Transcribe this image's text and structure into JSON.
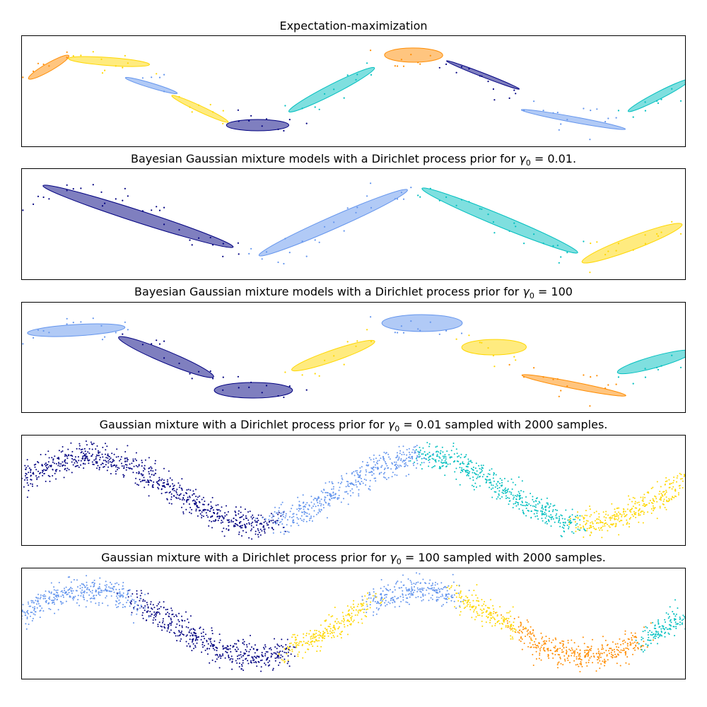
{
  "colors": {
    "navy": "#000080",
    "cornflowerblue": "#6495ED",
    "gold": "#FFD700",
    "darkorange": "#FF8C00",
    "c": "#00BFBF"
  },
  "chart_data": [
    {
      "type": "scatter",
      "title": {
        "prefix": "Expectation-maximization",
        "symbol": "",
        "sub": "",
        "value": "",
        "suffix": ""
      },
      "xlim": [
        -6,
        6.566
      ],
      "ylim": [
        -5,
        5
      ],
      "ticks": false,
      "grid": false,
      "ellipse_alpha": 0.5,
      "ellipses": [
        {
          "color": "darkorange",
          "center": [
            -5.48,
            2.13
          ],
          "semi_axes": [
            1.14,
            0.14
          ],
          "angle_deg": 71.6
        },
        {
          "color": "gold",
          "center": [
            -4.34,
            2.64
          ],
          "semi_axes": [
            0.82,
            0.34
          ],
          "angle_deg": -23
        },
        {
          "color": "cornflowerblue",
          "center": [
            -3.54,
            0.48
          ],
          "semi_axes": [
            0.87,
            0.13
          ],
          "angle_deg": -56.7
        },
        {
          "color": "gold",
          "center": [
            -2.62,
            -1.62
          ],
          "semi_axes": [
            1.32,
            0.12
          ],
          "angle_deg": -66.7
        },
        {
          "color": "navy",
          "center": [
            -1.53,
            -3.09
          ],
          "semi_axes": [
            0.59,
            0.51
          ],
          "angle_deg": 0
        },
        {
          "color": "c",
          "center": [
            -0.13,
            0.1
          ],
          "semi_axes": [
            2.16,
            0.19
          ],
          "angle_deg": 68.5
        },
        {
          "color": "darkorange",
          "center": [
            1.42,
            3.22
          ],
          "semi_axes": [
            0.55,
            0.64
          ],
          "angle_deg": 3
        },
        {
          "color": "navy",
          "center": [
            2.73,
            1.43
          ],
          "semi_axes": [
            1.45,
            0.09
          ],
          "angle_deg": -61.9
        },
        {
          "color": "cornflowerblue",
          "center": [
            4.44,
            -2.58
          ],
          "semi_axes": [
            1.32,
            0.19
          ],
          "angle_deg": -42.4
        },
        {
          "color": "c",
          "center": [
            6.06,
            -0.41
          ],
          "semi_axes": [
            1.57,
            0.14
          ],
          "angle_deg": 68.7
        }
      ]
    },
    {
      "type": "scatter",
      "title": {
        "prefix": "Bayesian Gaussian mixture models with a Dirichlet process prior for ",
        "symbol": "γ",
        "sub": "0",
        "value": " = 0.01",
        "suffix": "."
      },
      "xlim": [
        -6,
        6.566
      ],
      "ylim": [
        -5,
        5
      ],
      "ticks": false,
      "grid": false,
      "ellipse_alpha": 0.5,
      "ellipses": [
        {
          "color": "navy",
          "center": [
            -3.79,
            0.67
          ],
          "semi_axes": [
            3.32,
            0.31
          ],
          "angle_deg": -57.6
        },
        {
          "color": "cornflowerblue",
          "center": [
            -0.1,
            0.1
          ],
          "semi_axes": [
            3.3,
            0.26
          ],
          "angle_deg": 65.2
        },
        {
          "color": "c",
          "center": [
            3.05,
            0.29
          ],
          "semi_axes": [
            3.27,
            0.26
          ],
          "angle_deg": -63.6
        },
        {
          "color": "gold",
          "center": [
            5.55,
            -1.75
          ],
          "semi_axes": [
            2.0,
            0.3
          ],
          "angle_deg": 63
        }
      ]
    },
    {
      "type": "scatter",
      "title": {
        "prefix": "Bayesian Gaussian mixture models with a Dirichlet process prior for ",
        "symbol": "γ",
        "sub": "0",
        "value": " = 100",
        "suffix": ""
      },
      "xlim": [
        -6,
        6.566
      ],
      "ylim": [
        -5,
        5
      ],
      "ticks": false,
      "grid": false,
      "ellipse_alpha": 0.5,
      "ellipses": [
        {
          "color": "cornflowerblue",
          "center": [
            -4.96,
            2.45
          ],
          "semi_axes": [
            0.97,
            0.49
          ],
          "angle_deg": 21
        },
        {
          "color": "navy",
          "center": [
            -3.26,
            0.03
          ],
          "semi_axes": [
            2.04,
            0.26
          ],
          "angle_deg": -64.8
        },
        {
          "color": "navy",
          "center": [
            -1.61,
            -2.96
          ],
          "semi_axes": [
            0.74,
            0.7
          ],
          "angle_deg": -2
        },
        {
          "color": "gold",
          "center": [
            -0.1,
            0.16
          ],
          "semi_axes": [
            1.56,
            0.27
          ],
          "angle_deg": 61.3
        },
        {
          "color": "cornflowerblue",
          "center": [
            1.58,
            3.09
          ],
          "semi_axes": [
            0.76,
            0.76
          ],
          "angle_deg": -5
        },
        {
          "color": "gold",
          "center": [
            2.94,
            0.92
          ],
          "semi_axes": [
            0.61,
            0.7
          ],
          "angle_deg": -5
        },
        {
          "color": "darkorange",
          "center": [
            4.45,
            -2.52
          ],
          "semi_axes": [
            1.36,
            0.22
          ],
          "angle_deg": -44.5
        },
        {
          "color": "c",
          "center": [
            5.98,
            -0.41
          ],
          "semi_axes": [
            1.24,
            0.31
          ],
          "angle_deg": 58
        }
      ]
    },
    {
      "type": "scatter",
      "title": {
        "prefix": "Gaussian mixture with a Dirichlet process prior for ",
        "symbol": "γ",
        "sub": "0",
        "value": " = 0.01",
        "suffix": " sampled with 2000 samples."
      },
      "xlim": [
        -6,
        6.566
      ],
      "ylim": [
        -5,
        5
      ],
      "ticks": false,
      "grid": false,
      "samples": 2000,
      "components": [
        {
          "color": "navy",
          "x_range": [
            -6,
            -1.2
          ]
        },
        {
          "color": "cornflowerblue",
          "x_range": [
            -1.2,
            1.6
          ]
        },
        {
          "color": "c",
          "x_range": [
            1.6,
            4.5
          ]
        },
        {
          "color": "gold",
          "x_range": [
            4.5,
            6.566
          ]
        }
      ]
    },
    {
      "type": "scatter",
      "title": {
        "prefix": "Gaussian mixture with a Dirichlet process prior for ",
        "symbol": "γ",
        "sub": "0",
        "value": " = 100",
        "suffix": " sampled with 2000 samples."
      },
      "xlim": [
        -6,
        6.566
      ],
      "ylim": [
        -5,
        5
      ],
      "ticks": false,
      "grid": false,
      "samples": 2000,
      "components": [
        {
          "color": "cornflowerblue",
          "x_range": [
            -6,
            -3.85
          ]
        },
        {
          "color": "navy",
          "x_range": [
            -3.85,
            -0.95
          ]
        },
        {
          "color": "gold",
          "x_range": [
            -0.95,
            0.6
          ]
        },
        {
          "color": "cornflowerblue",
          "x_range": [
            0.6,
            2.2
          ]
        },
        {
          "color": "gold",
          "x_range": [
            2.2,
            3.3
          ]
        },
        {
          "color": "darkorange",
          "x_range": [
            3.3,
            5.7
          ]
        },
        {
          "color": "c",
          "x_range": [
            5.7,
            6.566
          ]
        }
      ]
    }
  ]
}
